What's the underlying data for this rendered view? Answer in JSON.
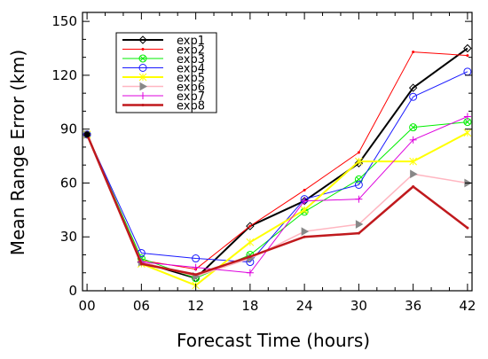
{
  "chart_data": {
    "type": "line",
    "xlabel": "Forecast Time (hours)",
    "ylabel": "Mean Range Error (km)",
    "x": [
      0,
      6,
      12,
      18,
      24,
      30,
      36,
      42
    ],
    "x_tick_labels": [
      "00",
      "06",
      "12",
      "18",
      "24",
      "30",
      "36",
      "42"
    ],
    "xlim": [
      -0.5,
      42.5
    ],
    "ylim": [
      0,
      155
    ],
    "y_ticks": [
      0,
      30,
      60,
      90,
      120,
      150
    ],
    "y_tick_labels": [
      "0",
      "30",
      "60",
      "90",
      "120",
      "150"
    ],
    "grid": false,
    "legend_placement": "top-left",
    "series": [
      {
        "name": "exp1",
        "color": "#000000",
        "marker": "diamond",
        "width": 2,
        "values": [
          87,
          16,
          7,
          36,
          50,
          71,
          113,
          135
        ]
      },
      {
        "name": "exp2",
        "color": "#ff0000",
        "marker": "dot",
        "width": 1,
        "values": [
          87,
          17,
          12,
          36,
          56,
          77,
          133,
          131
        ]
      },
      {
        "name": "exp3",
        "color": "#00ee00",
        "marker": "circle-x",
        "width": 1,
        "values": [
          87,
          18,
          7,
          20,
          44,
          62,
          91,
          94
        ]
      },
      {
        "name": "exp4",
        "color": "#1a1aff",
        "marker": "circle",
        "width": 1,
        "values": [
          87,
          21,
          18,
          16,
          51,
          59,
          108,
          122
        ]
      },
      {
        "name": "exp5",
        "color": "#ffff00",
        "marker": "asterisk",
        "width": 2,
        "values": [
          87,
          15,
          3,
          27,
          45,
          72,
          72,
          88
        ]
      },
      {
        "name": "exp6",
        "color": "#ffb6c1",
        "marker": "triangle-right",
        "width": 1.5,
        "values": [
          87,
          16,
          8,
          18,
          33,
          37,
          65,
          60
        ]
      },
      {
        "name": "exp7",
        "color": "#dd00dd",
        "marker": "plus",
        "width": 1,
        "values": [
          87,
          16,
          13,
          10,
          50,
          51,
          84,
          97
        ]
      },
      {
        "name": "exp8",
        "color": "#c0191d",
        "marker": "dot",
        "width": 2.5,
        "values": [
          87,
          15,
          9,
          19,
          30,
          32,
          58,
          35
        ]
      }
    ]
  }
}
